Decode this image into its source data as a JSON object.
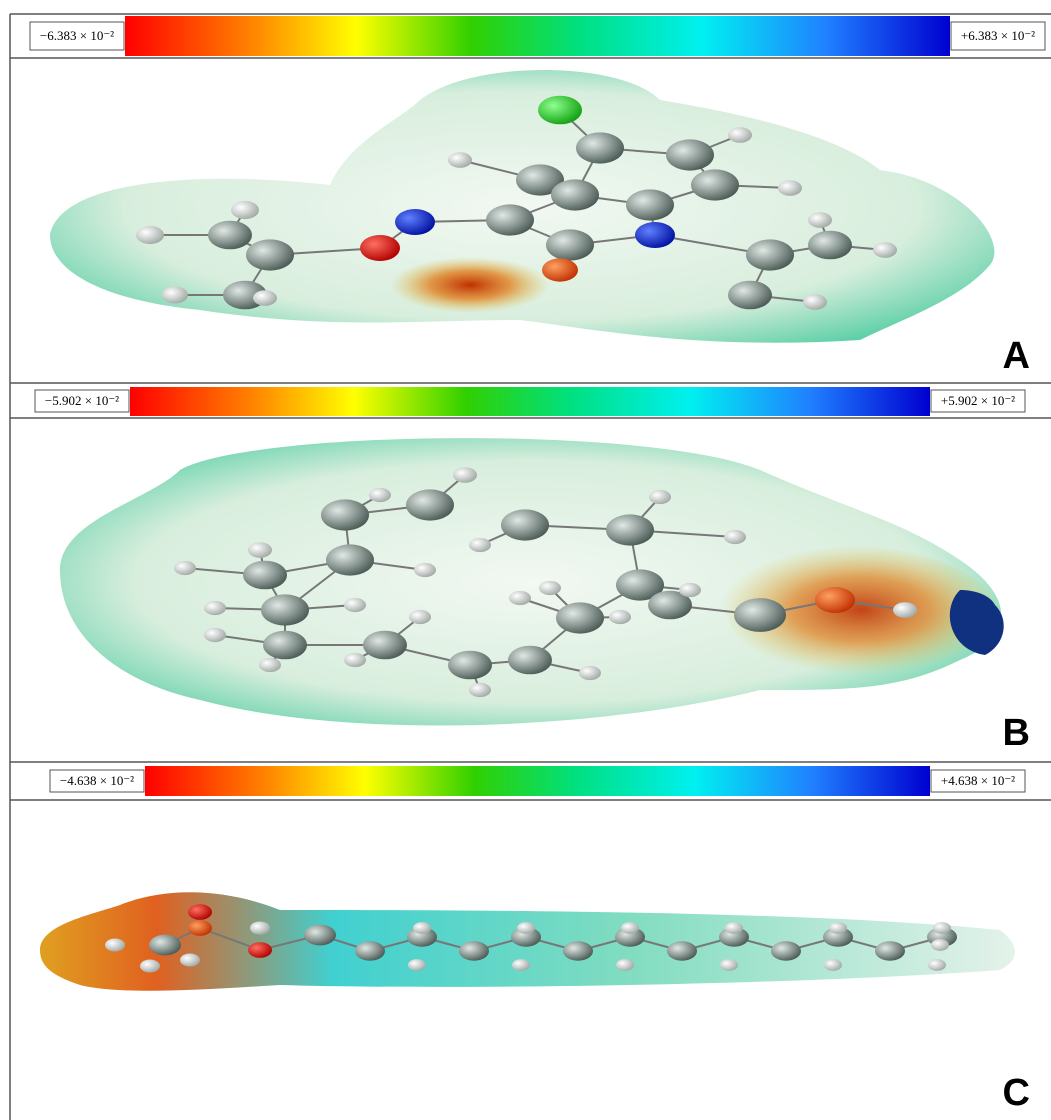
{
  "panels": [
    {
      "scale": {
        "min": "−6.383 × 10⁻²",
        "max": "+6.383 × 10⁻²"
      },
      "label": "A"
    },
    {
      "scale": {
        "min": "−5.902 × 10⁻²",
        "max": "+5.902 × 10⁻²"
      },
      "label": "B"
    },
    {
      "scale": {
        "min": "−4.638 × 10⁻²",
        "max": "+4.638 × 10⁻²"
      },
      "label": "C"
    }
  ]
}
